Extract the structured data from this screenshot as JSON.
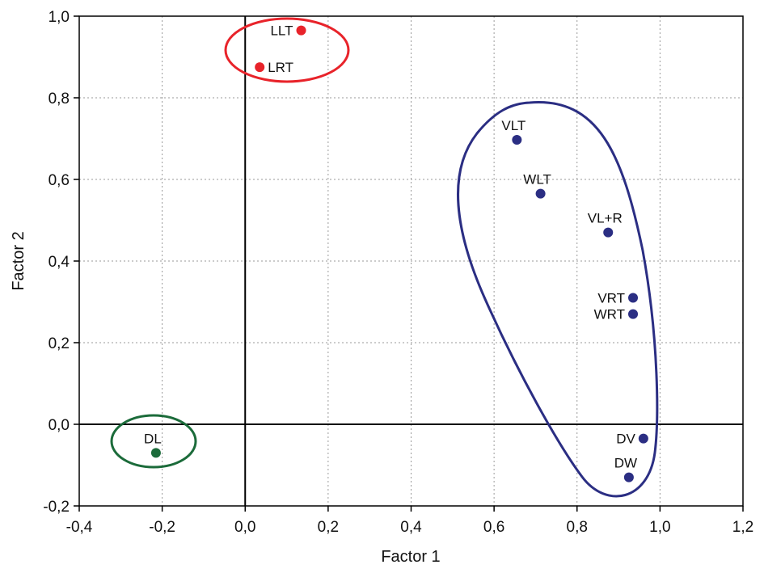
{
  "chart_data": {
    "type": "scatter",
    "xlabel": "Factor 1",
    "ylabel": "Factor 2",
    "xlim": [
      -0.4,
      1.2
    ],
    "ylim": [
      -0.2,
      1.0
    ],
    "x_ticks": [
      "-0,4",
      "-0,2",
      "0,0",
      "0,2",
      "0,4",
      "0,6",
      "0,8",
      "1,0",
      "1,2"
    ],
    "y_ticks": [
      "-0,2",
      "0,0",
      "0,2",
      "0,4",
      "0,6",
      "0,8",
      "1,0"
    ],
    "grid": true,
    "points": [
      {
        "label": "LLT",
        "x": 0.135,
        "y": 0.965,
        "color": "#e8232a",
        "label_side": "left"
      },
      {
        "label": "LRT",
        "x": 0.035,
        "y": 0.875,
        "color": "#e8232a",
        "label_side": "right"
      },
      {
        "label": "VLT",
        "x": 0.655,
        "y": 0.697,
        "color": "#2b2e83",
        "label_side": "above"
      },
      {
        "label": "WLT",
        "x": 0.712,
        "y": 0.565,
        "color": "#2b2e83",
        "label_side": "above"
      },
      {
        "label": "VL+R",
        "x": 0.875,
        "y": 0.47,
        "color": "#2b2e83",
        "label_side": "above"
      },
      {
        "label": "VRT",
        "x": 0.935,
        "y": 0.31,
        "color": "#2b2e83",
        "label_side": "left"
      },
      {
        "label": "WRT",
        "x": 0.935,
        "y": 0.27,
        "color": "#2b2e83",
        "label_side": "left"
      },
      {
        "label": "DV",
        "x": 0.96,
        "y": -0.035,
        "color": "#2b2e83",
        "label_side": "left"
      },
      {
        "label": "DW",
        "x": 0.925,
        "y": -0.13,
        "color": "#2b2e83",
        "label_side": "above"
      },
      {
        "label": "DL",
        "x": -0.215,
        "y": -0.07,
        "color": "#1b6b3a",
        "label_side": "above"
      }
    ],
    "groups": [
      {
        "name": "red-group",
        "color": "#e8232a",
        "members": [
          "LLT",
          "LRT"
        ]
      },
      {
        "name": "blue-group",
        "color": "#2b2e83",
        "members": [
          "VLT",
          "WLT",
          "VL+R",
          "VRT",
          "WRT",
          "DV",
          "DW"
        ]
      },
      {
        "name": "green-group",
        "color": "#1b6b3a",
        "members": [
          "DL"
        ]
      }
    ]
  }
}
